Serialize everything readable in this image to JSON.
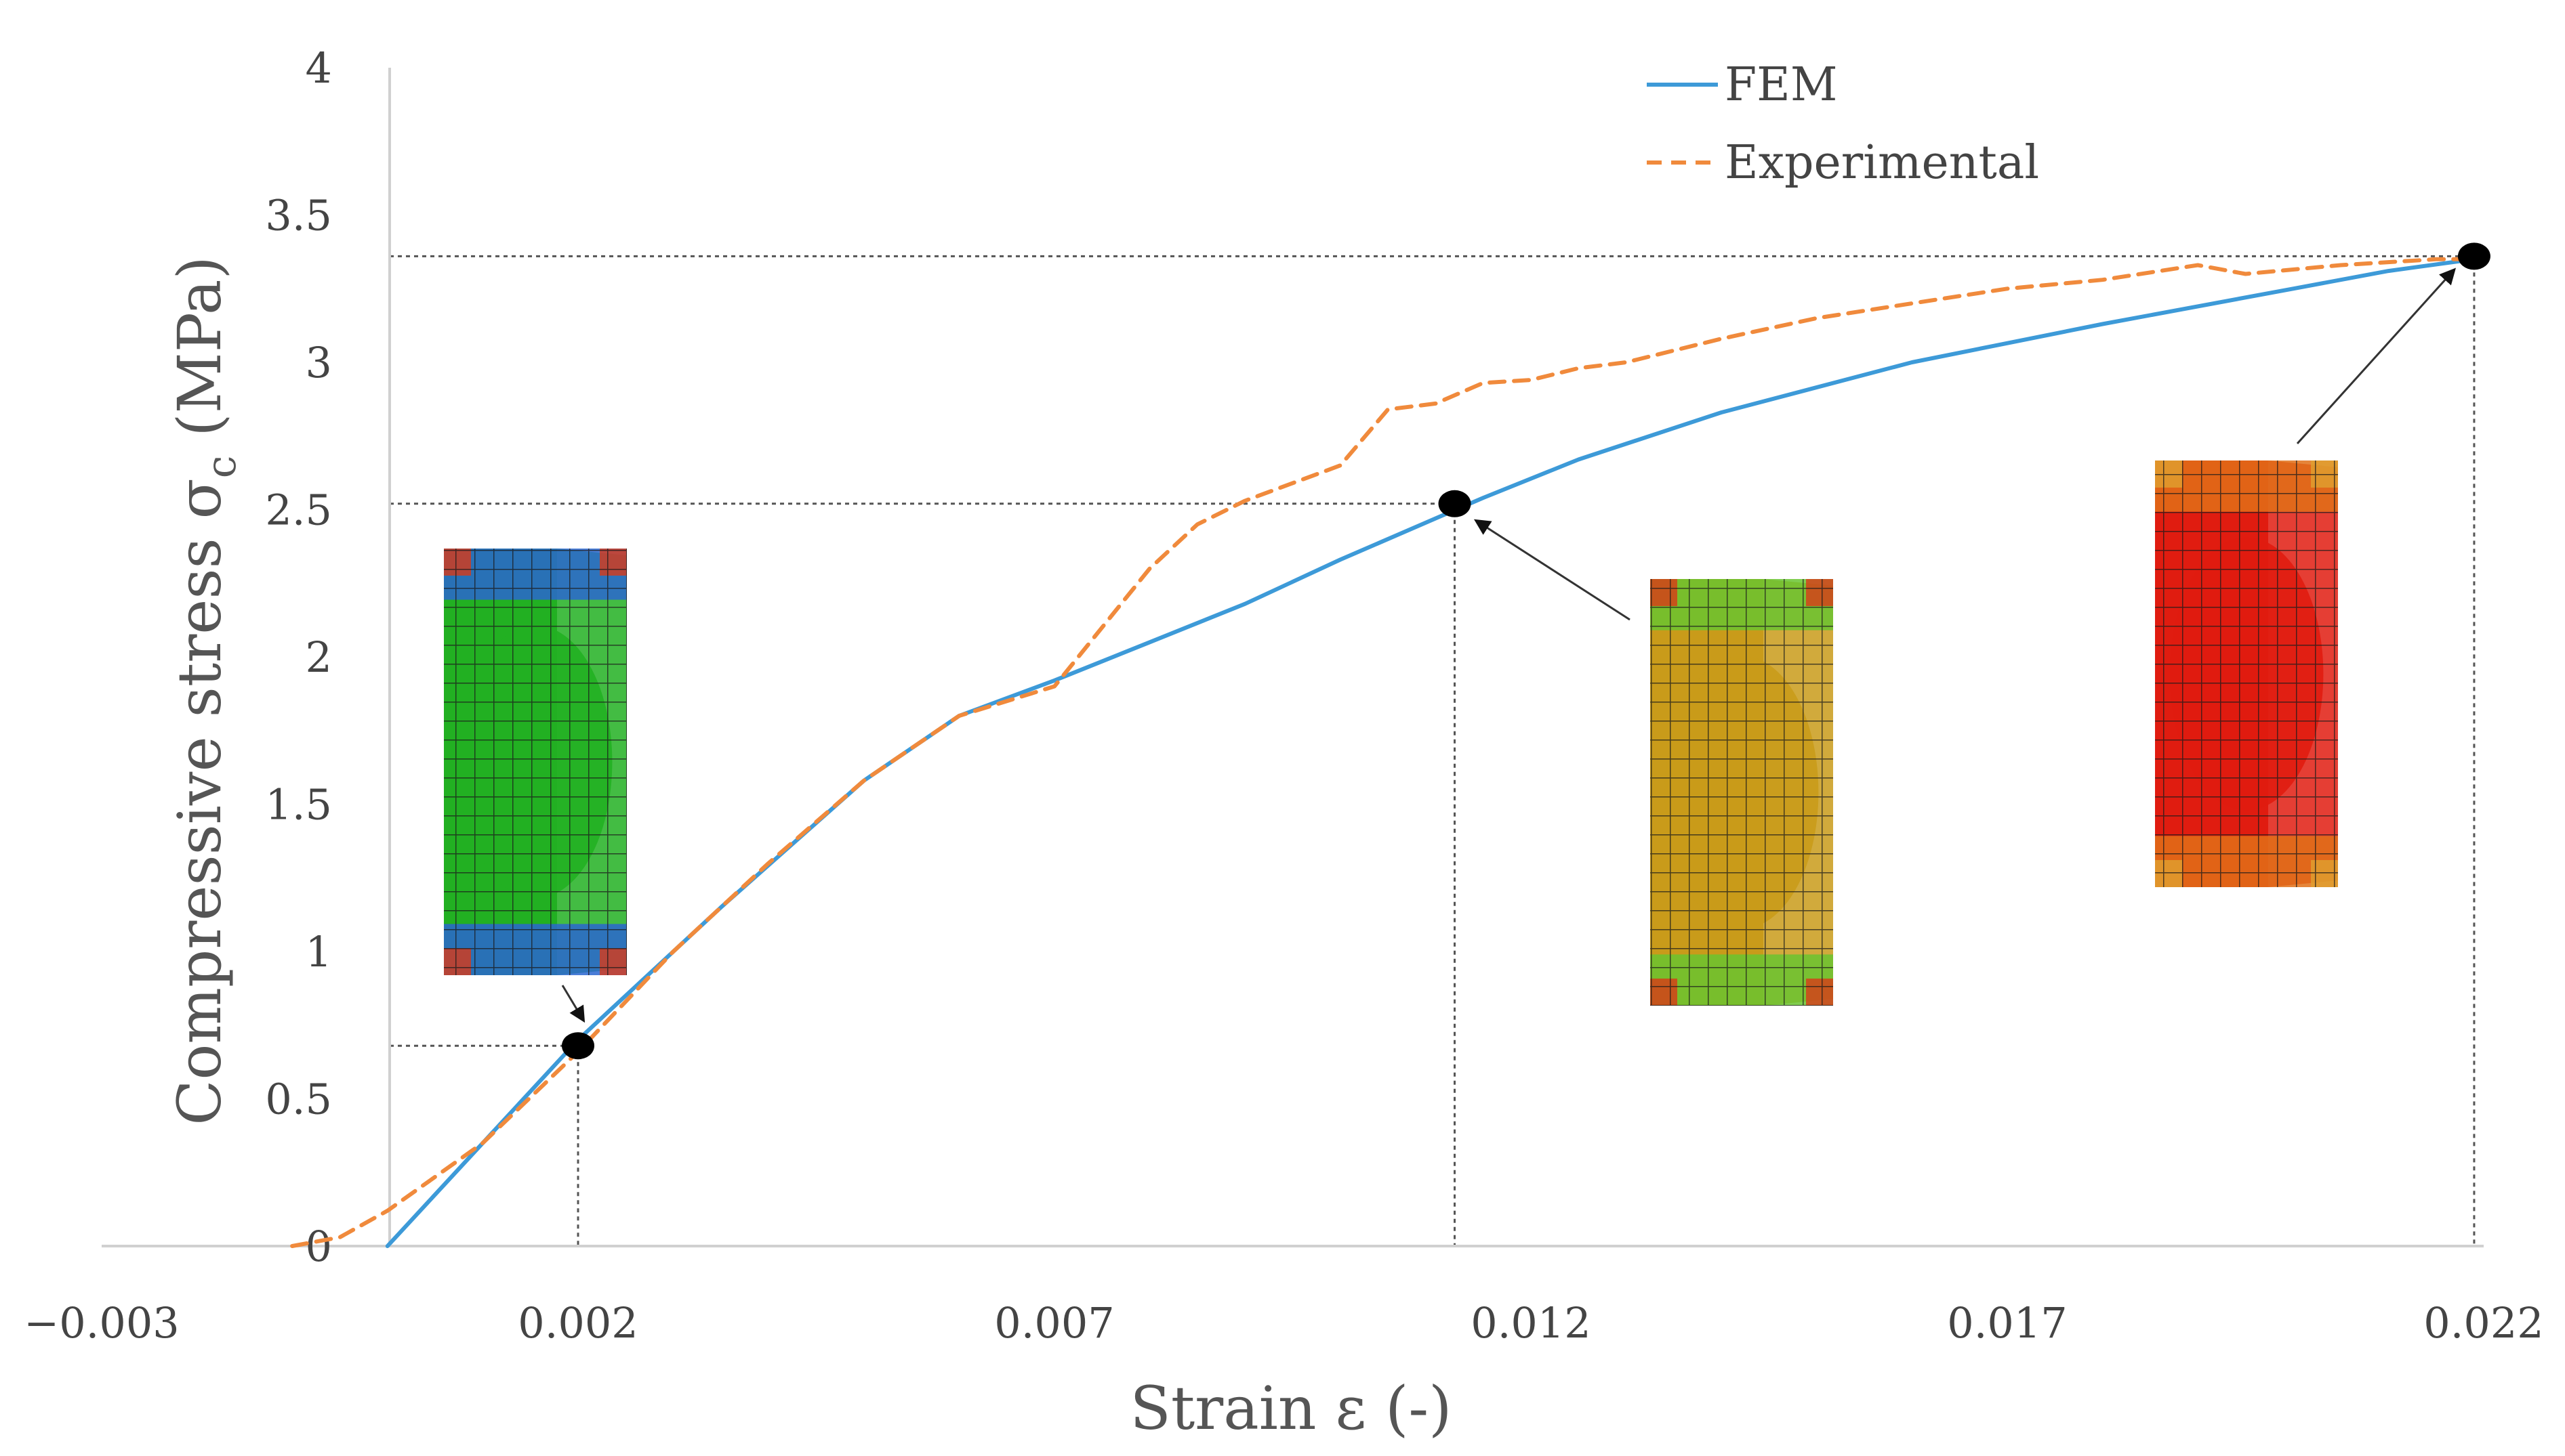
{
  "chart_data": {
    "type": "line",
    "xlabel": "Strain ε (-)",
    "ylabel_main": "Compressive stress σ",
    "ylabel_sub": "c",
    "ylabel_unit": " (MPa)",
    "xlim": [
      -0.003,
      0.022
    ],
    "ylim": [
      0,
      4
    ],
    "x_ticks": [
      -0.003,
      0.002,
      0.007,
      0.012,
      0.017,
      0.022
    ],
    "x_tick_labels": [
      "−0.003",
      "0.002",
      "0.007",
      "0.012",
      "0.017",
      "0.022"
    ],
    "y_ticks": [
      0,
      0.5,
      1,
      1.5,
      2,
      2.5,
      3,
      3.5,
      4
    ],
    "y_tick_labels": [
      "0",
      "0.5",
      "1",
      "1.5",
      "2",
      "2.5",
      "3",
      "3.5",
      "4"
    ],
    "legend_position": "top-right",
    "colors": {
      "fem": "#3d9ad8",
      "experimental": "#f08a3c",
      "axis": "#d0d0d0",
      "guide": "#555555"
    },
    "series": [
      {
        "name": "FEM",
        "style": "solid",
        "x": [
          0,
          0.001,
          0.002,
          0.0035,
          0.005,
          0.006,
          0.007,
          0.008,
          0.009,
          0.01,
          0.011,
          0.0115,
          0.0125,
          0.014,
          0.016,
          0.018,
          0.02,
          0.021,
          0.0219
        ],
        "y": [
          0,
          0.35,
          0.7,
          1.15,
          1.58,
          1.8,
          1.92,
          2.05,
          2.18,
          2.33,
          2.47,
          2.54,
          2.67,
          2.83,
          3.0,
          3.13,
          3.25,
          3.31,
          3.35
        ]
      },
      {
        "name": "Experimental",
        "style": "dashed",
        "x": [
          -0.001,
          -0.0005,
          0.0,
          0.001,
          0.002,
          0.003,
          0.004,
          0.005,
          0.006,
          0.007,
          0.0075,
          0.008,
          0.0085,
          0.009,
          0.01,
          0.0105,
          0.011,
          0.0115,
          0.012,
          0.0125,
          0.013,
          0.014,
          0.015,
          0.016,
          0.017,
          0.018,
          0.019,
          0.0195,
          0.0205,
          0.0215,
          0.0219
        ],
        "y": [
          0,
          0.03,
          0.12,
          0.35,
          0.66,
          1.0,
          1.3,
          1.58,
          1.8,
          1.9,
          2.1,
          2.3,
          2.45,
          2.53,
          2.65,
          2.84,
          2.86,
          2.93,
          2.94,
          2.98,
          3.0,
          3.08,
          3.15,
          3.2,
          3.25,
          3.28,
          3.33,
          3.3,
          3.33,
          3.35,
          3.35
        ]
      }
    ],
    "marked_points": [
      {
        "x": 0.002,
        "y": 0.68
      },
      {
        "x": 0.0112,
        "y": 2.52
      },
      {
        "x": 0.0219,
        "y": 3.36
      }
    ],
    "insets": [
      {
        "at_point": 0,
        "description_key": "low-stress",
        "colors": {
          "base": "#22b022",
          "edge": "#2a66d0",
          "corner": "#d83a18"
        }
      },
      {
        "at_point": 1,
        "description_key": "mid-stress",
        "colors": {
          "base": "#c99b1a",
          "edge": "#6ac430",
          "corner": "#d83a18"
        }
      },
      {
        "at_point": 2,
        "description_key": "high-stress",
        "colors": {
          "base": "#e01c10",
          "edge": "#e07018",
          "corner": "#e0a030"
        }
      }
    ]
  }
}
